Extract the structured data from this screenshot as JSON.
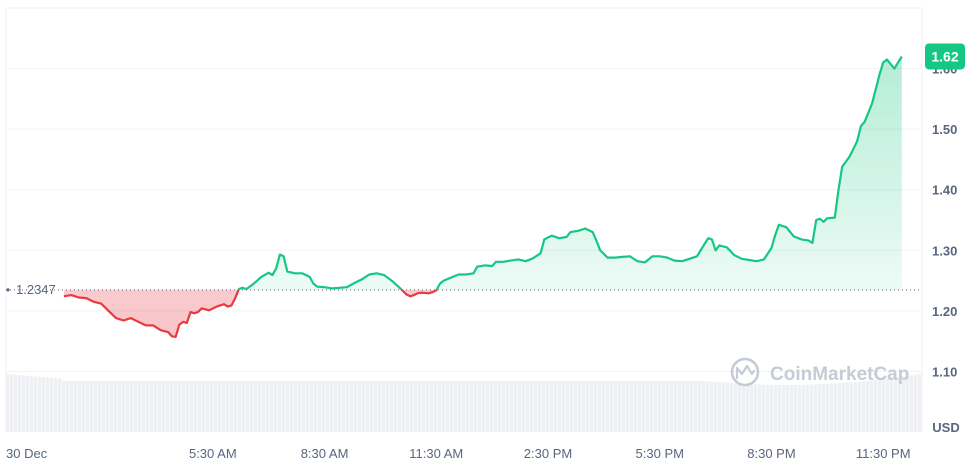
{
  "chart_data": {
    "type": "area",
    "baseline": {
      "value": 1.2347,
      "label": "1.2347"
    },
    "current_price": {
      "value": 1.62,
      "label": "1.62"
    },
    "currency_label": "USD",
    "watermark": "CoinMarketCap",
    "y_ticks": [
      "1.10",
      "1.20",
      "1.30",
      "1.40",
      "1.50",
      "1.60"
    ],
    "y_tick_values": [
      1.1,
      1.2,
      1.3,
      1.4,
      1.5,
      1.6
    ],
    "ylim": [
      1.0,
      1.7
    ],
    "x_ticks": [
      "30 Dec",
      "5:30 AM",
      "8:30 AM",
      "11:30 AM",
      "2:30 PM",
      "5:30 PM",
      "8:30 PM",
      "11:30 PM"
    ],
    "x_tick_hours": [
      0,
      5.5,
      8.5,
      11.5,
      14.5,
      17.5,
      20.5,
      23.5
    ],
    "xlim_hours": [
      0,
      24.3
    ],
    "grid": true,
    "colors": {
      "up": "#16c784",
      "down": "#ea3943",
      "up_fill": "#16c784",
      "down_fill": "#ea3943",
      "grid": "#eff2f5",
      "axis_text": "#58667e",
      "volume": "#eef0f3",
      "badge": "#16c784"
    },
    "series": [
      {
        "values": [
          [
            1.5,
            1.224
          ],
          [
            1.7,
            1.226
          ],
          [
            1.9,
            1.222
          ],
          [
            2.1,
            1.221
          ],
          [
            2.3,
            1.215
          ],
          [
            2.5,
            1.212
          ],
          [
            2.7,
            1.2
          ],
          [
            2.9,
            1.188
          ],
          [
            3.1,
            1.184
          ],
          [
            3.3,
            1.188
          ],
          [
            3.5,
            1.182
          ],
          [
            3.7,
            1.176
          ],
          [
            3.9,
            1.176
          ],
          [
            4.1,
            1.168
          ],
          [
            4.3,
            1.165
          ],
          [
            4.4,
            1.158
          ],
          [
            4.5,
            1.157
          ],
          [
            4.6,
            1.177
          ],
          [
            4.7,
            1.182
          ],
          [
            4.8,
            1.18
          ],
          [
            4.9,
            1.198
          ],
          [
            5.0,
            1.196
          ],
          [
            5.1,
            1.198
          ],
          [
            5.2,
            1.204
          ],
          [
            5.4,
            1.201
          ],
          [
            5.6,
            1.207
          ],
          [
            5.8,
            1.211
          ],
          [
            5.9,
            1.207
          ],
          [
            6.0,
            1.209
          ],
          [
            6.1,
            1.221
          ],
          [
            6.2,
            1.236
          ],
          [
            6.3,
            1.238
          ],
          [
            6.4,
            1.236
          ],
          [
            6.6,
            1.245
          ],
          [
            6.8,
            1.256
          ],
          [
            7.0,
            1.263
          ],
          [
            7.1,
            1.259
          ],
          [
            7.2,
            1.27
          ],
          [
            7.3,
            1.293
          ],
          [
            7.4,
            1.29
          ],
          [
            7.5,
            1.265
          ],
          [
            7.7,
            1.262
          ],
          [
            7.9,
            1.262
          ],
          [
            8.1,
            1.256
          ],
          [
            8.2,
            1.245
          ],
          [
            8.3,
            1.24
          ],
          [
            8.5,
            1.239
          ],
          [
            8.7,
            1.237
          ],
          [
            8.9,
            1.238
          ],
          [
            9.1,
            1.239
          ],
          [
            9.3,
            1.246
          ],
          [
            9.5,
            1.252
          ],
          [
            9.7,
            1.26
          ],
          [
            9.9,
            1.262
          ],
          [
            10.1,
            1.259
          ],
          [
            10.3,
            1.25
          ],
          [
            10.5,
            1.239
          ],
          [
            10.7,
            1.227
          ],
          [
            10.8,
            1.224
          ],
          [
            10.9,
            1.226
          ],
          [
            11.0,
            1.229
          ],
          [
            11.1,
            1.23
          ],
          [
            11.3,
            1.229
          ],
          [
            11.4,
            1.231
          ],
          [
            11.5,
            1.234
          ],
          [
            11.6,
            1.245
          ],
          [
            11.7,
            1.25
          ],
          [
            11.9,
            1.255
          ],
          [
            12.1,
            1.26
          ],
          [
            12.3,
            1.26
          ],
          [
            12.5,
            1.262
          ],
          [
            12.6,
            1.273
          ],
          [
            12.8,
            1.275
          ],
          [
            13.0,
            1.274
          ],
          [
            13.1,
            1.281
          ],
          [
            13.3,
            1.281
          ],
          [
            13.5,
            1.283
          ],
          [
            13.7,
            1.285
          ],
          [
            13.9,
            1.282
          ],
          [
            14.1,
            1.287
          ],
          [
            14.3,
            1.295
          ],
          [
            14.4,
            1.318
          ],
          [
            14.6,
            1.324
          ],
          [
            14.8,
            1.32
          ],
          [
            15.0,
            1.322
          ],
          [
            15.1,
            1.33
          ],
          [
            15.3,
            1.332
          ],
          [
            15.5,
            1.336
          ],
          [
            15.7,
            1.33
          ],
          [
            15.8,
            1.316
          ],
          [
            15.9,
            1.3
          ],
          [
            16.1,
            1.288
          ],
          [
            16.3,
            1.288
          ],
          [
            16.5,
            1.289
          ],
          [
            16.7,
            1.29
          ],
          [
            16.9,
            1.282
          ],
          [
            17.1,
            1.28
          ],
          [
            17.3,
            1.29
          ],
          [
            17.5,
            1.29
          ],
          [
            17.7,
            1.288
          ],
          [
            17.9,
            1.283
          ],
          [
            18.1,
            1.282
          ],
          [
            18.3,
            1.286
          ],
          [
            18.5,
            1.29
          ],
          [
            18.7,
            1.31
          ],
          [
            18.8,
            1.32
          ],
          [
            18.9,
            1.318
          ],
          [
            19.0,
            1.3
          ],
          [
            19.1,
            1.308
          ],
          [
            19.3,
            1.305
          ],
          [
            19.5,
            1.292
          ],
          [
            19.7,
            1.286
          ],
          [
            19.9,
            1.284
          ],
          [
            20.1,
            1.282
          ],
          [
            20.3,
            1.285
          ],
          [
            20.5,
            1.304
          ],
          [
            20.6,
            1.325
          ],
          [
            20.7,
            1.342
          ],
          [
            20.9,
            1.338
          ],
          [
            21.1,
            1.323
          ],
          [
            21.3,
            1.318
          ],
          [
            21.5,
            1.316
          ],
          [
            21.6,
            1.312
          ],
          [
            21.7,
            1.35
          ],
          [
            21.8,
            1.352
          ],
          [
            21.9,
            1.347
          ],
          [
            22.0,
            1.353
          ],
          [
            22.2,
            1.354
          ],
          [
            22.3,
            1.4
          ],
          [
            22.4,
            1.438
          ],
          [
            22.6,
            1.455
          ],
          [
            22.8,
            1.48
          ],
          [
            22.9,
            1.505
          ],
          [
            23.0,
            1.512
          ],
          [
            23.2,
            1.542
          ],
          [
            23.4,
            1.59
          ],
          [
            23.5,
            1.61
          ],
          [
            23.6,
            1.615
          ],
          [
            23.8,
            1.6
          ],
          [
            23.9,
            1.61
          ],
          [
            24.0,
            1.62
          ]
        ]
      }
    ]
  }
}
